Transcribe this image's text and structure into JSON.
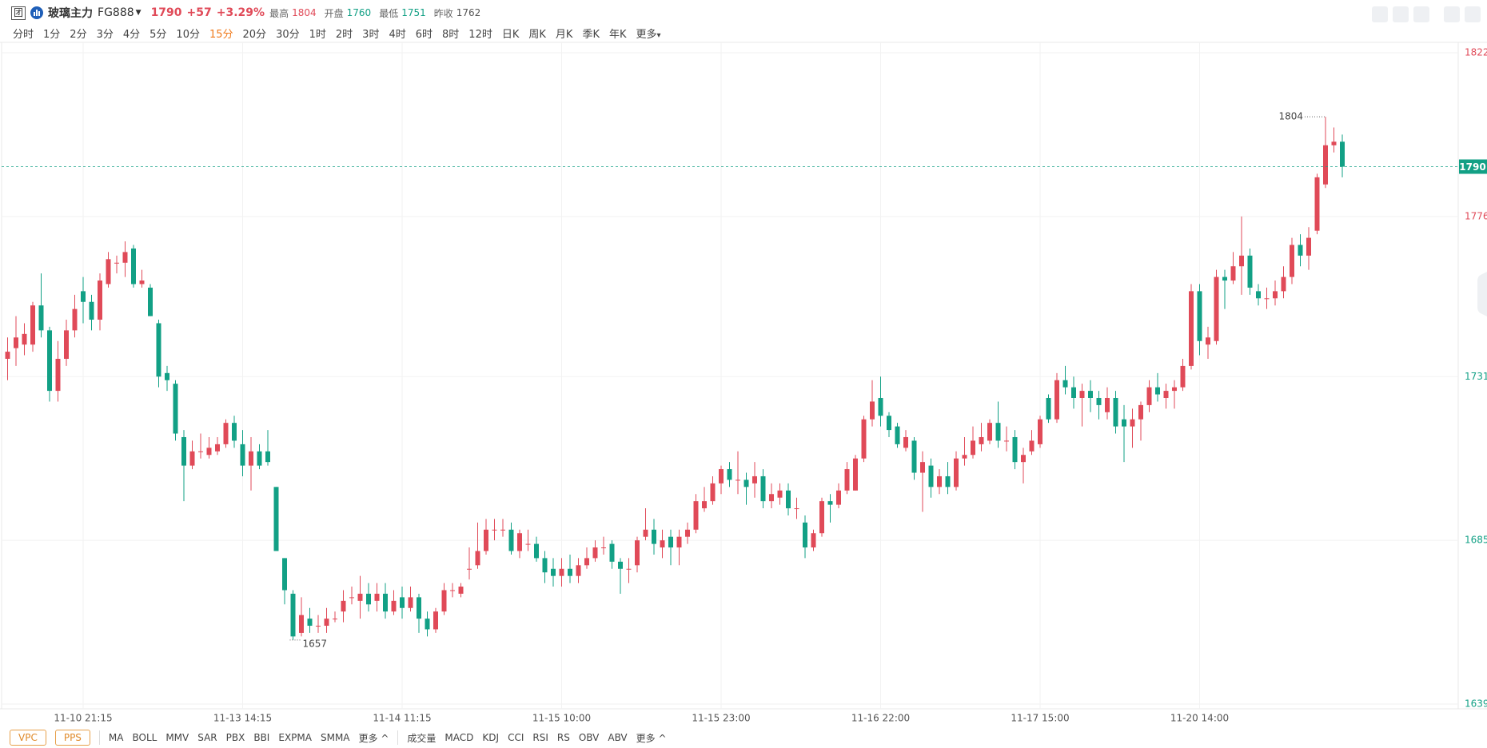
{
  "header": {
    "badge": "团",
    "name": "玻璃主力",
    "code": "FG888",
    "price": 1790,
    "change": "+57",
    "change_pct": "+3.29%",
    "stats": [
      {
        "label": "最高",
        "value": 1804
      },
      {
        "label": "开盘",
        "value": 1760
      },
      {
        "label": "最低",
        "value": 1751
      },
      {
        "label": "昨收",
        "value": 1762
      }
    ]
  },
  "periods": [
    "分时",
    "1分",
    "2分",
    "3分",
    "4分",
    "5分",
    "10分",
    "15分",
    "20分",
    "30分",
    "1时",
    "2时",
    "3时",
    "4时",
    "6时",
    "8时",
    "12时",
    "日K",
    "周K",
    "月K",
    "季K",
    "年K",
    "更多"
  ],
  "active_period": "15分",
  "indicators_main": [
    "VPC",
    "PPS"
  ],
  "indicators_overlay": [
    "MA",
    "BOLL",
    "MMV",
    "SAR",
    "PBX",
    "BBI",
    "EXPMA",
    "SMMA",
    "更多"
  ],
  "indicators_sub": [
    "成交量",
    "MACD",
    "KDJ",
    "CCI",
    "RSI",
    "RS",
    "OBV",
    "ABV",
    "更多"
  ],
  "chart_data": {
    "type": "candlestick",
    "up_color": "#e04a58",
    "down_color": "#12a085",
    "grid": true,
    "ylim": [
      1639,
      1822
    ],
    "yticks": [
      1639,
      1685,
      1731,
      1776,
      1822
    ],
    "last_price": 1790,
    "annotations": [
      1804,
      1657
    ],
    "categories": [
      null,
      null,
      null,
      null,
      null,
      null,
      null,
      null,
      null,
      "11-10 21:15",
      null,
      null,
      null,
      null,
      null,
      null,
      null,
      null,
      null,
      null,
      null,
      null,
      null,
      null,
      null,
      null,
      null,
      null,
      "11-13 14:15",
      null,
      null,
      null,
      null,
      null,
      null,
      null,
      null,
      null,
      null,
      null,
      null,
      null,
      null,
      null,
      null,
      null,
      null,
      "11-14 11:15",
      null,
      null,
      null,
      null,
      null,
      null,
      null,
      null,
      null,
      null,
      null,
      null,
      null,
      null,
      null,
      null,
      null,
      null,
      "11-15 10:00",
      null,
      null,
      null,
      null,
      null,
      null,
      null,
      null,
      null,
      null,
      null,
      null,
      null,
      null,
      null,
      null,
      null,
      null,
      "11-15 23:00",
      null,
      null,
      null,
      null,
      null,
      null,
      null,
      null,
      null,
      null,
      null,
      null,
      null,
      null,
      null,
      null,
      null,
      null,
      "11-16 22:00",
      null,
      null,
      null,
      null,
      null,
      null,
      null,
      null,
      null,
      null,
      null,
      null,
      null,
      null,
      null,
      null,
      null,
      null,
      "11-17 15:00",
      null,
      null,
      null,
      null,
      null,
      null,
      null,
      null,
      null,
      null,
      null,
      null,
      null,
      null,
      null,
      null,
      null,
      null,
      "11-20 14:00",
      null,
      null,
      null,
      null,
      null,
      null,
      null,
      null,
      null,
      null,
      null,
      null,
      null,
      null,
      null,
      null,
      null
    ],
    "open": [
      1736,
      1739,
      1740,
      1740,
      1751,
      1744,
      1727,
      1736,
      1744,
      1755,
      1752,
      1747,
      1757,
      1763,
      1763,
      1767,
      1757,
      1756,
      1746,
      1732,
      1729,
      1714,
      1706,
      1710,
      1709,
      1710,
      1712,
      1718,
      1712,
      1706,
      1710,
      1710,
      1700,
      1680,
      1670,
      1659,
      1663,
      1661,
      1661,
      1663,
      1665,
      1669,
      1668,
      1670,
      1668,
      1670,
      1665,
      1669,
      1666,
      1669,
      1663,
      1660,
      1665,
      1671,
      1670,
      1677,
      1678,
      1682,
      1688,
      1688,
      1688,
      1682,
      1684,
      1684,
      1680,
      1677,
      1675,
      1677,
      1675,
      1678,
      1680,
      1683,
      1684,
      1679,
      1677,
      1678,
      1686,
      1688,
      1683,
      1686,
      1683,
      1686,
      1688,
      1694,
      1696,
      1701,
      1705,
      1702,
      1702,
      1701,
      1703,
      1696,
      1697,
      1699,
      1694,
      1690,
      1683,
      1687,
      1696,
      1695,
      1699,
      1699,
      1708,
      1719,
      1725,
      1720,
      1717,
      1711,
      1713,
      1704,
      1706,
      1700,
      1703,
      1700,
      1708,
      1709,
      1712,
      1713,
      1718,
      1713,
      1714,
      1707,
      1710,
      1712,
      1725,
      1719,
      1730,
      1728,
      1725,
      1727,
      1725,
      1721,
      1725,
      1719,
      1717,
      1719,
      1723,
      1728,
      1725,
      1727,
      1728,
      1734,
      1755,
      1740,
      1741,
      1759,
      1758,
      1762,
      1765,
      1755,
      1753,
      1753,
      1755,
      1759,
      1768,
      1765,
      1772,
      1785,
      1796,
      1797
    ],
    "high": [
      1742,
      1748,
      1746,
      1752,
      1760,
      1745,
      1741,
      1747,
      1754,
      1759,
      1754,
      1760,
      1766,
      1765,
      1769,
      1768,
      1761,
      1757,
      1747,
      1734,
      1730,
      1716,
      1713,
      1715,
      1714,
      1714,
      1719,
      1720,
      1716,
      1714,
      1712,
      1716,
      1700,
      1680,
      1671,
      1669,
      1666,
      1664,
      1666,
      1665,
      1671,
      1672,
      1675,
      1673,
      1673,
      1673,
      1671,
      1672,
      1672,
      1670,
      1665,
      1666,
      1673,
      1673,
      1673,
      1683,
      1690,
      1691,
      1691,
      1691,
      1690,
      1688,
      1688,
      1686,
      1682,
      1680,
      1680,
      1681,
      1680,
      1683,
      1685,
      1686,
      1685,
      1680,
      1680,
      1686,
      1694,
      1691,
      1688,
      1688,
      1688,
      1690,
      1698,
      1700,
      1703,
      1706,
      1707,
      1710,
      1704,
      1707,
      1705,
      1701,
      1701,
      1701,
      1697,
      1692,
      1688,
      1697,
      1698,
      1701,
      1707,
      1709,
      1720,
      1730,
      1731,
      1721,
      1718,
      1716,
      1714,
      1710,
      1708,
      1705,
      1707,
      1710,
      1714,
      1717,
      1718,
      1719,
      1724,
      1717,
      1716,
      1711,
      1716,
      1720,
      1726,
      1732,
      1734,
      1731,
      1729,
      1730,
      1727,
      1728,
      1727,
      1723,
      1722,
      1724,
      1730,
      1732,
      1729,
      1730,
      1736,
      1757,
      1757,
      1745,
      1761,
      1761,
      1766,
      1776,
      1767,
      1757,
      1756,
      1758,
      1762,
      1770,
      1771,
      1773,
      1788,
      1804,
      1801,
      1799
    ],
    "low": [
      1730,
      1734,
      1737,
      1738,
      1742,
      1724,
      1724,
      1734,
      1742,
      1746,
      1744,
      1744,
      1756,
      1760,
      1759,
      1756,
      1756,
      1748,
      1728,
      1727,
      1713,
      1696,
      1705,
      1708,
      1708,
      1709,
      1711,
      1711,
      1703,
      1699,
      1705,
      1706,
      1682,
      1667,
      1657,
      1658,
      1659,
      1659,
      1659,
      1662,
      1662,
      1667,
      1663,
      1665,
      1665,
      1663,
      1664,
      1663,
      1665,
      1659,
      1658,
      1659,
      1664,
      1669,
      1669,
      1674,
      1677,
      1681,
      1685,
      1686,
      1681,
      1680,
      1682,
      1679,
      1673,
      1672,
      1672,
      1673,
      1673,
      1677,
      1679,
      1681,
      1677,
      1670,
      1673,
      1676,
      1685,
      1681,
      1680,
      1678,
      1678,
      1684,
      1687,
      1693,
      1695,
      1698,
      1700,
      1698,
      1695,
      1697,
      1694,
      1694,
      1695,
      1692,
      1691,
      1680,
      1682,
      1686,
      1690,
      1694,
      1698,
      1699,
      1707,
      1717,
      1717,
      1714,
      1711,
      1710,
      1702,
      1693,
      1697,
      1698,
      1698,
      1699,
      1706,
      1708,
      1710,
      1712,
      1711,
      1710,
      1705,
      1701,
      1709,
      1711,
      1718,
      1718,
      1726,
      1722,
      1717,
      1721,
      1719,
      1719,
      1715,
      1707,
      1711,
      1713,
      1721,
      1724,
      1722,
      1722,
      1727,
      1733,
      1737,
      1736,
      1740,
      1750,
      1757,
      1754,
      1754,
      1751,
      1750,
      1751,
      1753,
      1757,
      1762,
      1761,
      1771,
      1784,
      1794,
      1787
    ],
    "close": [
      1738,
      1742,
      1743,
      1751,
      1744,
      1727,
      1736,
      1744,
      1750,
      1752,
      1747,
      1758,
      1764,
      1763,
      1766,
      1757,
      1758,
      1748,
      1731,
      1730,
      1715,
      1706,
      1710,
      1710,
      1711,
      1712,
      1718,
      1713,
      1706,
      1710,
      1706,
      1707,
      1682,
      1671,
      1658,
      1664,
      1661,
      1661,
      1663,
      1663,
      1668,
      1669,
      1670,
      1667,
      1670,
      1665,
      1668,
      1666,
      1669,
      1663,
      1660,
      1665,
      1671,
      1671,
      1672,
      1677,
      1682,
      1688,
      1688,
      1688,
      1682,
      1687,
      1684,
      1680,
      1676,
      1675,
      1677,
      1675,
      1678,
      1680,
      1683,
      1683,
      1679,
      1677,
      1677,
      1685,
      1688,
      1684,
      1685,
      1683,
      1686,
      1688,
      1696,
      1696,
      1701,
      1705,
      1702,
      1702,
      1700,
      1703,
      1696,
      1698,
      1699,
      1694,
      1694,
      1683,
      1687,
      1696,
      1695,
      1699,
      1705,
      1708,
      1719,
      1724,
      1720,
      1716,
      1712,
      1714,
      1704,
      1707,
      1700,
      1703,
      1700,
      1708,
      1709,
      1713,
      1714,
      1718,
      1713,
      1713,
      1707,
      1709,
      1713,
      1719,
      1719,
      1730,
      1728,
      1725,
      1727,
      1725,
      1723,
      1725,
      1717,
      1717,
      1719,
      1723,
      1728,
      1726,
      1727,
      1728,
      1734,
      1755,
      1741,
      1742,
      1759,
      1758,
      1762,
      1765,
      1756,
      1753,
      1753,
      1755,
      1759,
      1768,
      1765,
      1770,
      1787,
      1796,
      1797,
      1790
    ]
  }
}
